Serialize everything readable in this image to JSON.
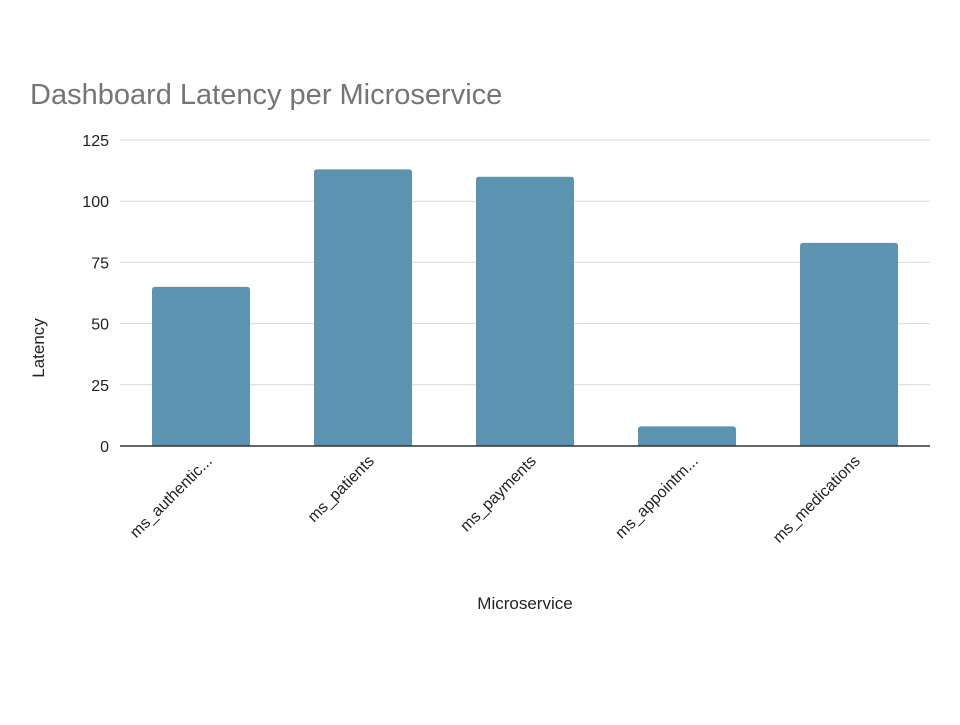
{
  "chart_data": {
    "type": "bar",
    "title": "Dashboard Latency per Microservice",
    "xlabel": "Microservice",
    "ylabel": "Latency",
    "categories": [
      "ms_authentic...",
      "ms_patients",
      "ms_payments",
      "ms_appointm...",
      "ms_medications"
    ],
    "values": [
      65,
      113,
      110,
      8,
      83
    ],
    "ylim": [
      0,
      125
    ],
    "yticks": [
      0,
      25,
      50,
      75,
      100,
      125
    ],
    "ytick_labels": [
      "0",
      "25",
      "50",
      "75",
      "100",
      "125"
    ],
    "grid": true,
    "legend": "none",
    "bar_color": "#5b93b1"
  }
}
